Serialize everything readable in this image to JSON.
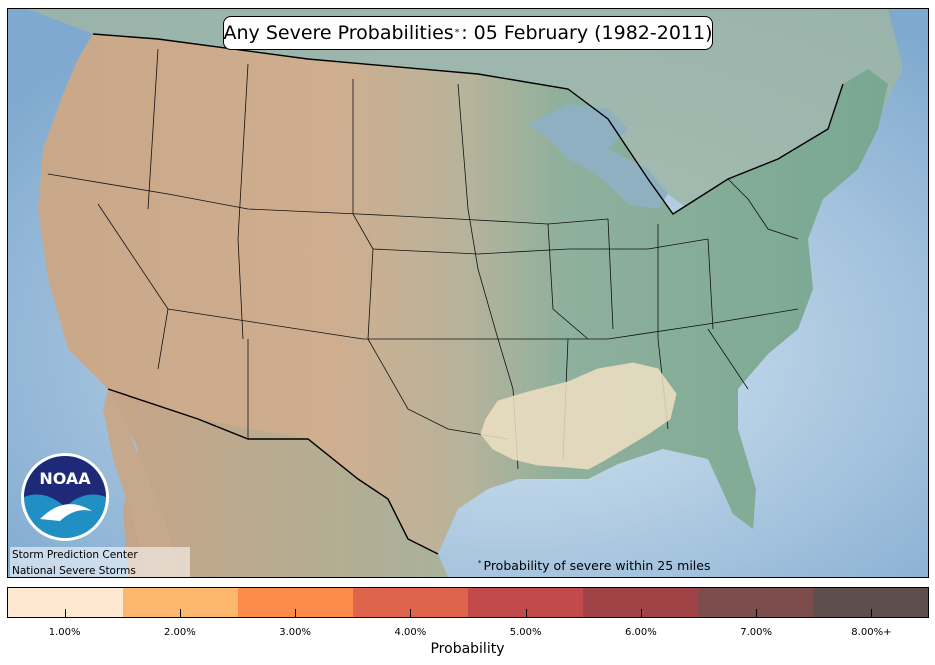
{
  "map": {
    "title_main": "Any Severe Probabilities",
    "title_rest": ": 05 February (1982-2011)",
    "title_marker": "*",
    "footnote": "Probability of severe within 25 miles",
    "footnote_marker": "*",
    "credits": [
      "Storm Prediction Center",
      "National Severe Storms Laboratory"
    ],
    "logo_text": "NOAA",
    "probability_area_color": "#efe1c4"
  },
  "colorbar": {
    "label": "Probability",
    "colors": [
      "#fee8d2",
      "#fdb76e",
      "#fd8c4a",
      "#e0644c",
      "#c24a4a",
      "#a04347",
      "#7d4d4d",
      "#5e4f4e"
    ],
    "tick_labels": [
      "1.00%",
      "2.00%",
      "3.00%",
      "4.00%",
      "5.00%",
      "6.00%",
      "7.00%",
      "8.00%+"
    ]
  }
}
